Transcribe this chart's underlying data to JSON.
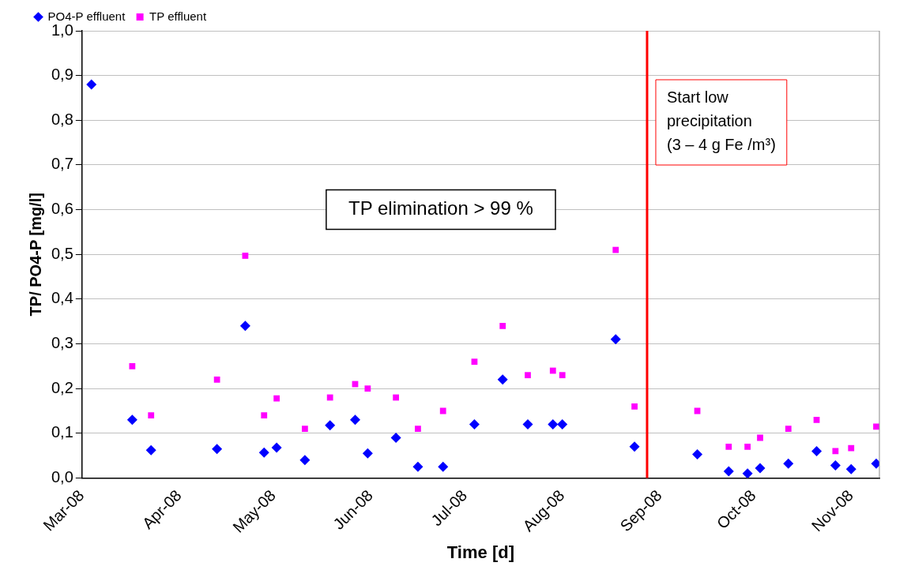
{
  "chart_data": {
    "type": "scatter",
    "xlabel": "Time [d]",
    "ylabel": "TP/ PO4-P [mg/l]",
    "xlim": [
      "2008-03-01",
      "2008-11-10"
    ],
    "xticks": [
      {
        "value": "2008-03-01",
        "label": "Mar-08"
      },
      {
        "value": "2008-04-01",
        "label": "Apr-08"
      },
      {
        "value": "2008-05-01",
        "label": "May-08"
      },
      {
        "value": "2008-06-01",
        "label": "Jun-08"
      },
      {
        "value": "2008-07-01",
        "label": "Jul-08"
      },
      {
        "value": "2008-08-01",
        "label": "Aug-08"
      },
      {
        "value": "2008-09-01",
        "label": "Sep-08"
      },
      {
        "value": "2008-10-01",
        "label": "Oct-08"
      },
      {
        "value": "2008-11-01",
        "label": "Nov-08"
      }
    ],
    "ylim": [
      0,
      1
    ],
    "yticks": [
      {
        "value": 0,
        "label": "0,0"
      },
      {
        "value": 0.1,
        "label": "0,1"
      },
      {
        "value": 0.2,
        "label": "0,2"
      },
      {
        "value": 0.3,
        "label": "0,3"
      },
      {
        "value": 0.4,
        "label": "0,4"
      },
      {
        "value": 0.5,
        "label": "0,5"
      },
      {
        "value": 0.6,
        "label": "0,6"
      },
      {
        "value": 0.7,
        "label": "0,7"
      },
      {
        "value": 0.8,
        "label": "0,8"
      },
      {
        "value": 0.9,
        "label": "0,9"
      },
      {
        "value": 1,
        "label": "1,0"
      }
    ],
    "grid": "y",
    "legend": "top left",
    "series": [
      {
        "name": "PO4-P effluent",
        "color": "#0000ff",
        "marker": "diamond",
        "x": [
          "2008-03-04",
          "2008-03-17",
          "2008-03-23",
          "2008-04-13",
          "2008-04-22",
          "2008-04-28",
          "2008-05-02",
          "2008-05-11",
          "2008-05-19",
          "2008-05-27",
          "2008-05-31",
          "2008-06-09",
          "2008-06-16",
          "2008-06-24",
          "2008-07-04",
          "2008-07-13",
          "2008-07-21",
          "2008-07-29",
          "2008-08-01",
          "2008-08-18",
          "2008-08-24",
          "2008-09-13",
          "2008-09-23",
          "2008-09-29",
          "2008-10-03",
          "2008-10-12",
          "2008-10-21",
          "2008-10-27",
          "2008-11-01",
          "2008-11-09"
        ],
        "values": [
          0.88,
          0.13,
          0.062,
          0.065,
          0.34,
          0.057,
          0.068,
          0.04,
          0.118,
          0.13,
          0.055,
          0.09,
          0.025,
          0.025,
          0.12,
          0.22,
          0.12,
          0.12,
          0.12,
          0.31,
          0.07,
          0.053,
          0.015,
          0.01,
          0.022,
          0.032,
          0.06,
          0.028,
          0.02,
          0.032
        ]
      },
      {
        "name": "TP effluent",
        "color": "#ff00ff",
        "marker": "square",
        "x": [
          "2008-03-17",
          "2008-03-23",
          "2008-04-13",
          "2008-04-22",
          "2008-04-28",
          "2008-05-02",
          "2008-05-11",
          "2008-05-19",
          "2008-05-27",
          "2008-05-31",
          "2008-06-09",
          "2008-06-16",
          "2008-06-24",
          "2008-07-04",
          "2008-07-13",
          "2008-07-21",
          "2008-07-29",
          "2008-08-01",
          "2008-08-18",
          "2008-08-24",
          "2008-09-13",
          "2008-09-23",
          "2008-09-29",
          "2008-10-03",
          "2008-10-12",
          "2008-10-21",
          "2008-10-27",
          "2008-11-01",
          "2008-11-09"
        ],
        "values": [
          0.25,
          0.14,
          0.22,
          0.497,
          0.14,
          0.178,
          0.11,
          0.18,
          0.21,
          0.2,
          0.18,
          0.11,
          0.15,
          0.26,
          0.34,
          0.23,
          0.24,
          0.23,
          0.51,
          0.16,
          0.15,
          0.07,
          0.07,
          0.09,
          0.11,
          0.13,
          0.06,
          0.067,
          0.115
        ]
      }
    ],
    "ref_lines": [
      {
        "axis": "x",
        "value": "2008-08-28",
        "label": "Start low\nprecipitation\n(3 – 4 g Fe /m³)",
        "color": "#ff0000"
      }
    ],
    "annotations": [
      "TP elimination > 99 %"
    ]
  }
}
